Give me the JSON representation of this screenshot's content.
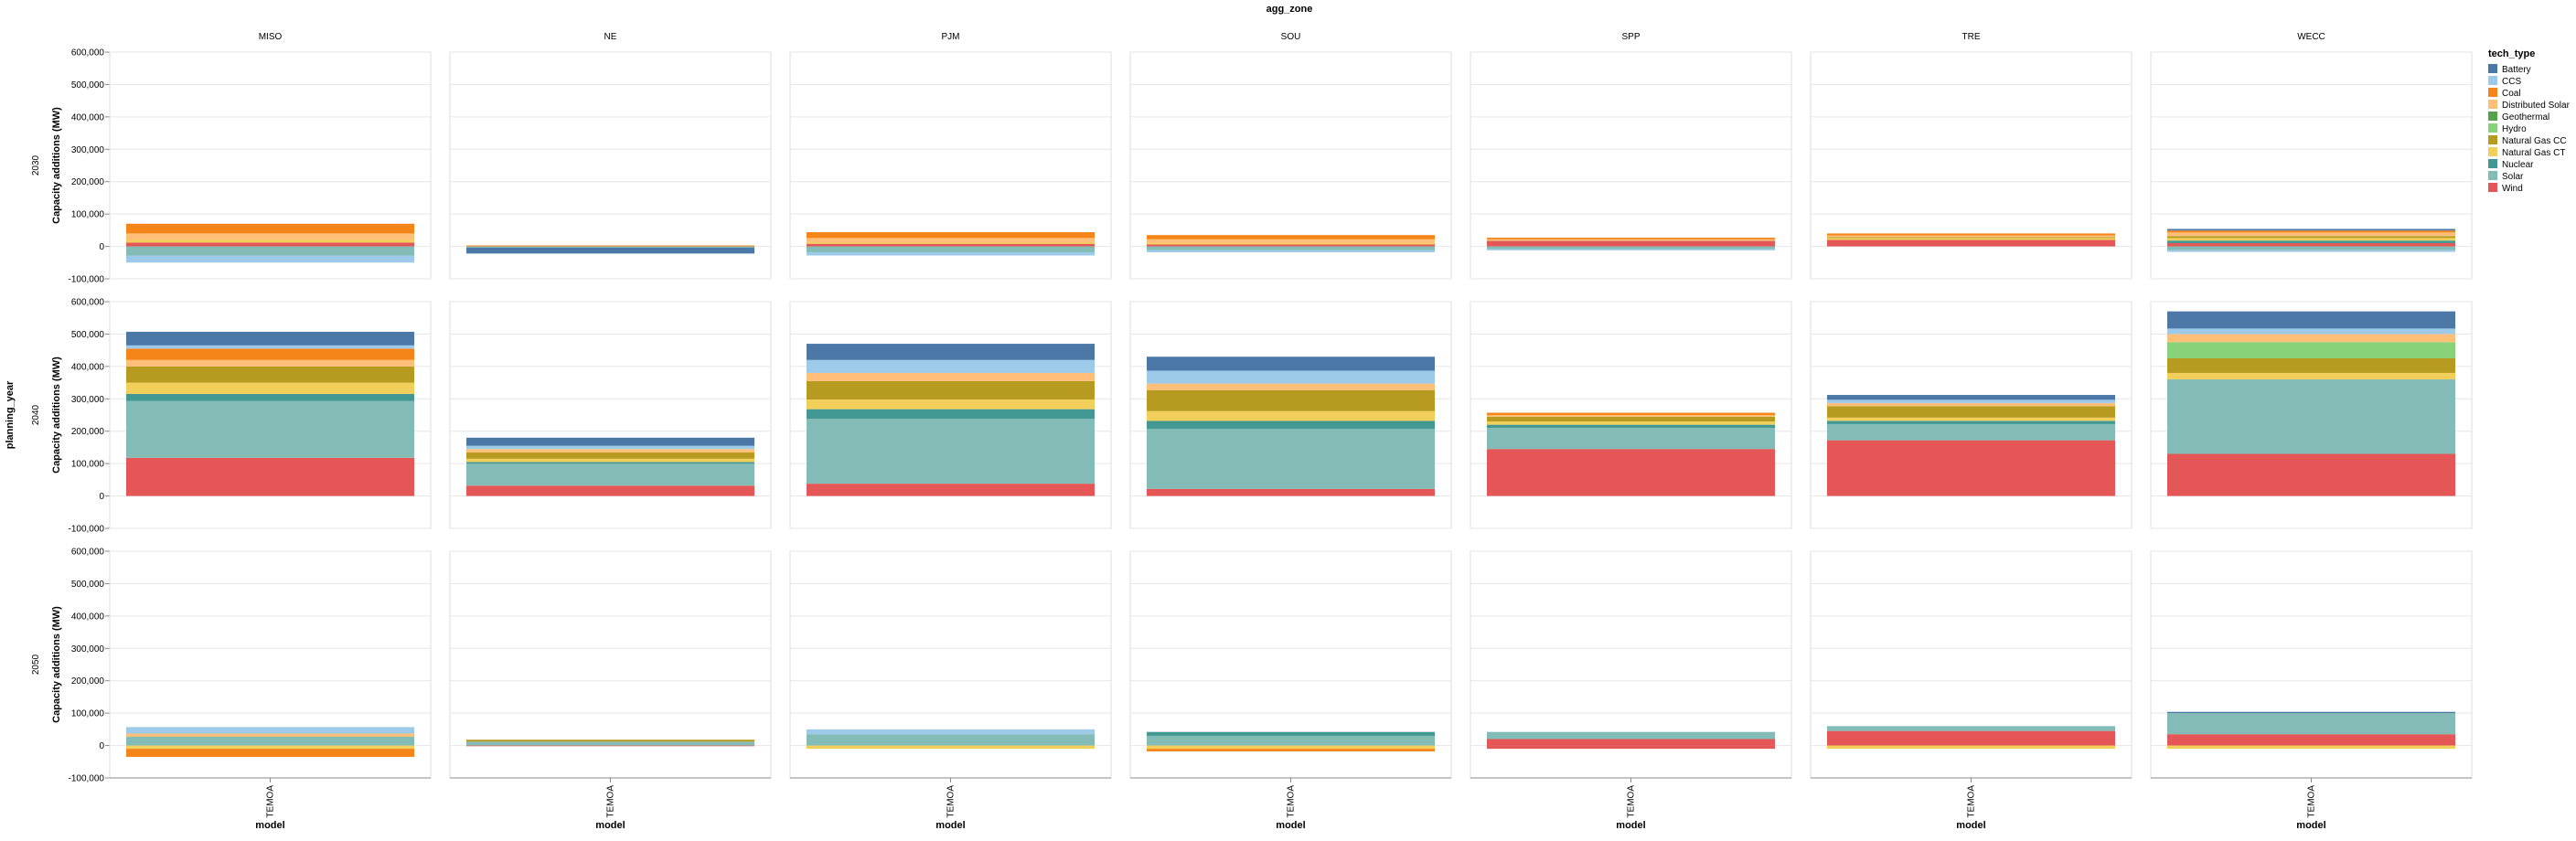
{
  "chart_data": {
    "type": "bar",
    "stacked": true,
    "title": "agg_zone",
    "column_facets": [
      "MISO",
      "NE",
      "PJM",
      "SOU",
      "SPP",
      "TRE",
      "WECC"
    ],
    "row_facet_title": "planning_year",
    "row_facets": [
      "2030",
      "2040",
      "2050"
    ],
    "xlabel": "model",
    "x_categories": [
      "TEMOA"
    ],
    "ylabel": "Capacity additions (MW)",
    "ylim": [
      -100000,
      600000
    ],
    "y_ticks": [
      -100000,
      0,
      100000,
      200000,
      300000,
      400000,
      500000,
      600000
    ],
    "y_tick_labels": [
      "-100,000",
      "0",
      "100,000",
      "200,000",
      "300,000",
      "400,000",
      "500,000",
      "600,000"
    ],
    "grid": true,
    "legend": {
      "title": "tech_type",
      "position": "right",
      "items": [
        "Battery",
        "CCS",
        "Coal",
        "Distributed Solar",
        "Geothermal",
        "Hydro",
        "Natural Gas CC",
        "Natural Gas CT",
        "Nuclear",
        "Solar",
        "Wind"
      ]
    },
    "colors": {
      "Battery": "#4c78a8",
      "CCS": "#9ecae9",
      "Coal": "#f58518",
      "Distributed Solar": "#ffbf79",
      "Geothermal": "#54a24b",
      "Hydro": "#88d27a",
      "Natural Gas CC": "#b79a20",
      "Natural Gas CT": "#f2cf5b",
      "Nuclear": "#439894",
      "Solar": "#83bcb6",
      "Wind": "#e45756"
    },
    "panels": [
      {
        "year": "2030",
        "zone": "MISO",
        "pos": {
          "Wind": 12000,
          "Natural Gas CT": 8000,
          "Distributed Solar": 20000,
          "Coal": 30000
        },
        "neg": {
          "Solar": -28000,
          "CCS": -22000
        }
      },
      {
        "year": "2030",
        "zone": "NE",
        "pos": {
          "Coal": 3000
        },
        "neg": {
          "Solar": -4000,
          "Battery": -18000
        }
      },
      {
        "year": "2030",
        "zone": "PJM",
        "pos": {
          "Wind": 8000,
          "Natural Gas CT": 5000,
          "Distributed Solar": 13000,
          "Coal": 18000
        },
        "neg": {
          "Solar": -18000,
          "CCS": -10000
        }
      },
      {
        "year": "2030",
        "zone": "SOU",
        "pos": {
          "Wind": 6000,
          "Natural Gas CT": 5000,
          "Distributed Solar": 11000,
          "Coal": 13000
        },
        "neg": {
          "Solar": -12000,
          "CCS": -6000
        }
      },
      {
        "year": "2030",
        "zone": "SPP",
        "pos": {
          "Wind": 17000,
          "Distributed Solar": 5000,
          "Coal": 5000
        },
        "neg": {
          "Solar": -8000,
          "CCS": -4000
        }
      },
      {
        "year": "2030",
        "zone": "TRE",
        "pos": {
          "Wind": 20000,
          "Natural Gas CC": 3000,
          "Natural Gas CT": 6000,
          "Distributed Solar": 5000,
          "Coal": 6000
        },
        "neg": {}
      },
      {
        "year": "2030",
        "zone": "WECC",
        "pos": {
          "Wind": 10000,
          "Natural Gas CC": 6000,
          "Natural Gas CT": 8000,
          "Distributed Solar": 11000,
          "Coal": 6000,
          "Nuclear": 8000,
          "Battery": 5000
        },
        "neg": {
          "Solar": -12000,
          "CCS": -5000
        }
      },
      {
        "year": "2040",
        "zone": "MISO",
        "pos": {
          "Wind": 118000,
          "Solar": 175000,
          "Nuclear": 22000,
          "Natural Gas CT": 35000,
          "Natural Gas CC": 50000,
          "Distributed Solar": 20000,
          "CCS": 10000,
          "Coal": 35000,
          "Battery": 42000
        },
        "neg": {}
      },
      {
        "year": "2040",
        "zone": "NE",
        "pos": {
          "Wind": 32000,
          "Solar": 68000,
          "Nuclear": 5000,
          "Natural Gas CT": 10000,
          "Natural Gas CC": 20000,
          "Distributed Solar": 10000,
          "CCS": 10000,
          "Battery": 25000
        },
        "neg": {}
      },
      {
        "year": "2040",
        "zone": "PJM",
        "pos": {
          "Wind": 38000,
          "Solar": 200000,
          "Nuclear": 30000,
          "Natural Gas CT": 30000,
          "Natural Gas CC": 57000,
          "Distributed Solar": 25000,
          "CCS": 40000,
          "Battery": 50000
        },
        "neg": {}
      },
      {
        "year": "2040",
        "zone": "SOU",
        "pos": {
          "Wind": 22000,
          "Solar": 185000,
          "Nuclear": 25000,
          "Natural Gas CT": 30000,
          "Natural Gas CC": 65000,
          "Distributed Solar": 20000,
          "CCS": 40000,
          "Battery": 43000
        },
        "neg": {}
      },
      {
        "year": "2040",
        "zone": "SPP",
        "pos": {
          "Wind": 145000,
          "Solar": 65000,
          "Nuclear": 10000,
          "Natural Gas CT": 10000,
          "Natural Gas CC": 15000,
          "Distributed Solar": 5000,
          "Coal": 7000
        },
        "neg": {}
      },
      {
        "year": "2040",
        "zone": "TRE",
        "pos": {
          "Wind": 172000,
          "Solar": 50000,
          "Nuclear": 10000,
          "Natural Gas CT": 10000,
          "Natural Gas CC": 35000,
          "Distributed Solar": 10000,
          "CCS": 10000,
          "Battery": 15000
        },
        "neg": {}
      },
      {
        "year": "2040",
        "zone": "WECC",
        "pos": {
          "Wind": 130000,
          "Solar": 230000,
          "Natural Gas CT": 20000,
          "Natural Gas CC": 45000,
          "Hydro": 50000,
          "Distributed Solar": 25000,
          "CCS": 17000,
          "Battery": 53000
        },
        "neg": {}
      },
      {
        "year": "2050",
        "zone": "MISO",
        "pos": {
          "Solar": 27000,
          "Distributed Solar": 10000,
          "CCS": 20000
        },
        "neg": {
          "Natural Gas CT": -10000,
          "Coal": -25000
        }
      },
      {
        "year": "2050",
        "zone": "NE",
        "pos": {
          "Solar": 12000,
          "Natural Gas CC": 6000
        },
        "neg": {
          "Wind": -2000
        }
      },
      {
        "year": "2050",
        "zone": "PJM",
        "pos": {
          "Solar": 35000,
          "CCS": 15000
        },
        "neg": {
          "Natural Gas CT": -10000
        }
      },
      {
        "year": "2050",
        "zone": "SOU",
        "pos": {
          "Solar": 30000,
          "Nuclear": 12000
        },
        "neg": {
          "Natural Gas CT": -10000,
          "Coal": -8000
        }
      },
      {
        "year": "2050",
        "zone": "SPP",
        "pos": {
          "Wind": 20000,
          "Solar": 22000
        },
        "neg": {
          "Wind": -10000
        }
      },
      {
        "year": "2050",
        "zone": "TRE",
        "pos": {
          "Wind": 45000,
          "Solar": 15000
        },
        "neg": {
          "Natural Gas CT": -10000
        }
      },
      {
        "year": "2050",
        "zone": "WECC",
        "pos": {
          "Wind": 35000,
          "Solar": 65000,
          "Battery": 4000
        },
        "neg": {
          "Natural Gas CT": -10000
        }
      }
    ]
  }
}
